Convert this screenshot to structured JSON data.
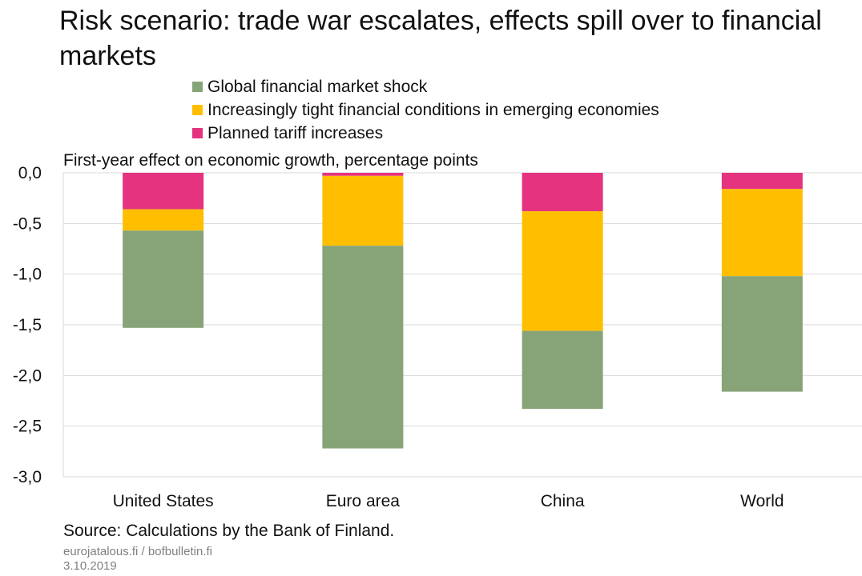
{
  "title": "Risk scenario: trade war escalates, effects spill over to financial markets",
  "source": "Source: Calculations by the Bank of Finland.",
  "footer_site": "eurojatalous.fi / bofbulletin.fi",
  "footer_date": "3.10.2019",
  "chart_data": {
    "type": "bar",
    "stacked": true,
    "subtitle": "First-year effect on economic growth, percentage points",
    "categories": [
      "United States",
      "Euro area",
      "China",
      "World"
    ],
    "series": [
      {
        "name": "Planned tariff increases",
        "color": "#e5337f",
        "values": [
          -0.36,
          -0.03,
          -0.38,
          -0.16
        ]
      },
      {
        "name": "Increasingly tight financial conditions in emerging economies",
        "color": "#ffbf00",
        "values": [
          -0.21,
          -0.69,
          -1.18,
          -0.86
        ]
      },
      {
        "name": "Global financial market shock",
        "color": "#87a478",
        "values": [
          -0.96,
          -2.0,
          -0.77,
          -1.14
        ]
      }
    ],
    "legend_order": [
      2,
      1,
      0
    ],
    "ylim": [
      -3.0,
      0.0
    ],
    "yticks": [
      "0,0",
      "-0,5",
      "-1,0",
      "-1,5",
      "-2,0",
      "-2,5",
      "-3,0"
    ],
    "grid": true,
    "legend_position": "top"
  }
}
